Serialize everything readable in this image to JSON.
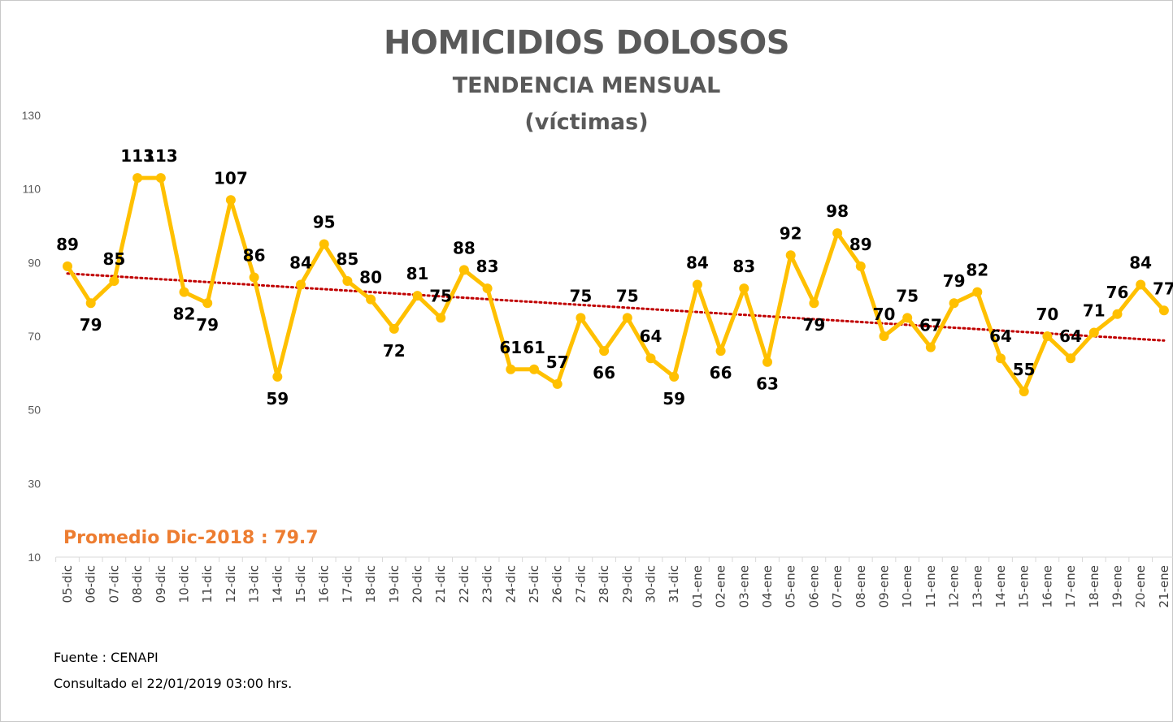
{
  "chart_data": {
    "type": "line",
    "title": "HOMICIDIOS DOLOSOS",
    "subtitle": "TENDENCIA MENSUAL",
    "subtitle2": "(víctimas)",
    "categories": [
      "05-dic",
      "06-dic",
      "07-dic",
      "08-dic",
      "09-dic",
      "10-dic",
      "11-dic",
      "12-dic",
      "13-dic",
      "14-dic",
      "15-dic",
      "16-dic",
      "17-dic",
      "18-dic",
      "19-dic",
      "20-dic",
      "21-dic",
      "22-dic",
      "23-dic",
      "24-dic",
      "25-dic",
      "26-dic",
      "27-dic",
      "28-dic",
      "29-dic",
      "30-dic",
      "31-dic",
      "01-ene",
      "02-ene",
      "03-ene",
      "04-ene",
      "05-ene",
      "06-ene",
      "07-ene",
      "08-ene",
      "09-ene",
      "10-ene",
      "11-ene",
      "12-ene",
      "13-ene",
      "14-ene",
      "15-ene",
      "16-ene",
      "17-ene",
      "18-ene",
      "19-ene",
      "20-ene",
      "21-ene"
    ],
    "values": [
      89,
      79,
      85,
      113,
      113,
      82,
      79,
      107,
      86,
      59,
      84,
      95,
      85,
      80,
      72,
      81,
      75,
      88,
      83,
      61,
      61,
      57,
      75,
      66,
      75,
      64,
      59,
      84,
      66,
      83,
      63,
      92,
      79,
      98,
      89,
      70,
      75,
      67,
      79,
      82,
      64,
      55,
      70,
      64,
      71,
      76,
      84,
      77
    ],
    "yticks": [
      "10",
      "30",
      "50",
      "70",
      "90",
      "110",
      "130"
    ],
    "ylim": [
      10,
      130
    ],
    "trendline": {
      "type": "linear",
      "color": "#c00000",
      "style": "dotted"
    },
    "series_color": "#ffc000",
    "grid": false,
    "annotation": "Promedio Dic-2018 : 79.7",
    "annotation_color": "#ed7d31"
  },
  "footer": {
    "source": "Fuente : CENAPI",
    "consulted": "Consultado el 22/01/2019  03:00 hrs."
  }
}
